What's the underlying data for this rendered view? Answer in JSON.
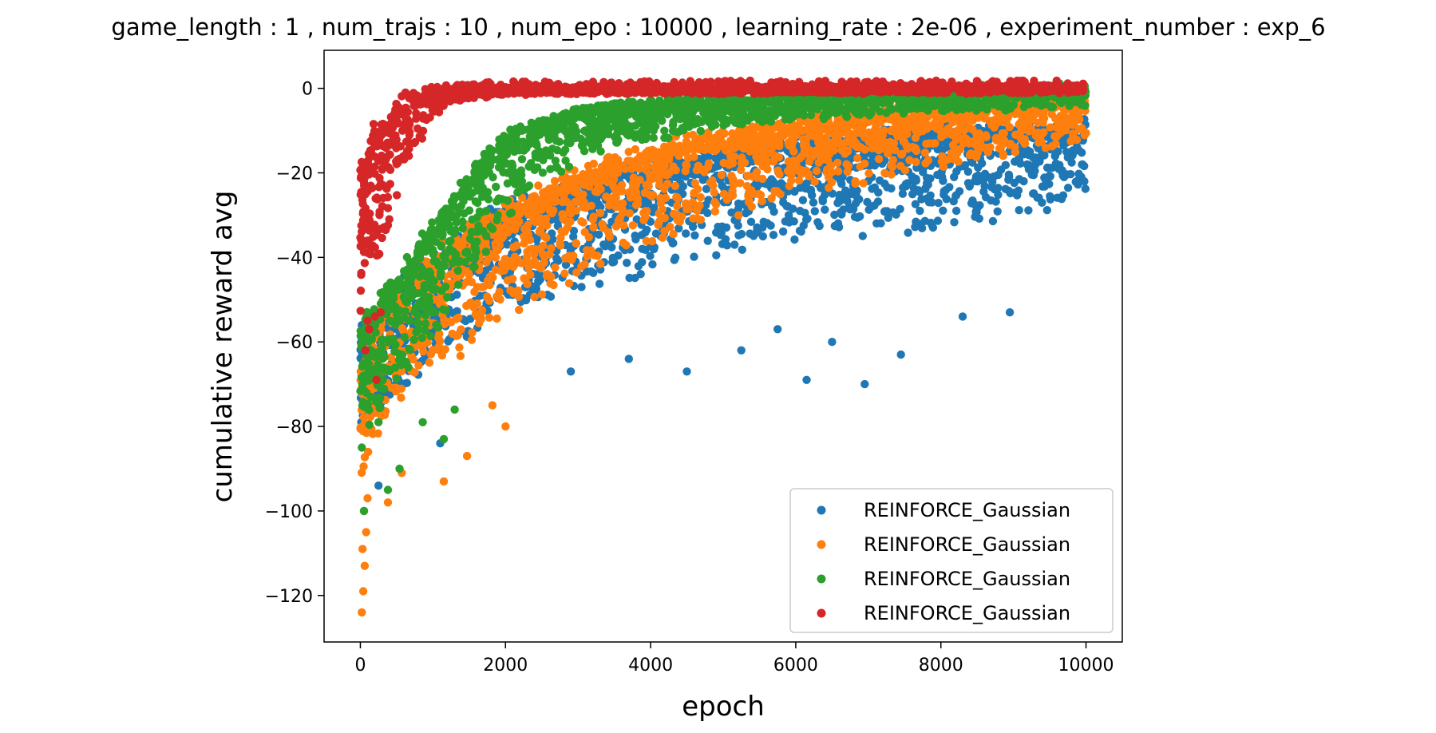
{
  "chart_data": {
    "type": "scatter",
    "title": "game_length : 1 , num_trajs : 10 , num_epo : 10000 , learning_rate : 2e-06 , experiment_number : exp_6",
    "xlabel": "epoch",
    "ylabel": "cumulative reward avg",
    "xlim": [
      -500,
      10500
    ],
    "ylim": [
      -131,
      9
    ],
    "xticks": [
      0,
      2000,
      4000,
      6000,
      8000,
      10000
    ],
    "xtick_labels": [
      "0",
      "2000",
      "4000",
      "6000",
      "8000",
      "10000"
    ],
    "yticks": [
      0,
      -20,
      -40,
      -60,
      -80,
      -100,
      -120
    ],
    "ytick_labels": [
      "0",
      "−20",
      "−40",
      "−60",
      "−80",
      "−100",
      "−120"
    ],
    "legend_position": "lower-right",
    "grid": false,
    "series": [
      {
        "name": "REINFORCE_Gaussian",
        "color": "#1f77b4",
        "trend": [
          [
            0,
            -60
          ],
          [
            500,
            -50
          ],
          [
            1000,
            -42
          ],
          [
            2000,
            -30
          ],
          [
            3000,
            -25
          ],
          [
            4000,
            -20
          ],
          [
            5000,
            -17
          ],
          [
            6000,
            -14
          ],
          [
            7000,
            -13
          ],
          [
            8000,
            -12
          ],
          [
            9000,
            -11
          ],
          [
            10000,
            -10
          ]
        ],
        "spread": [
          [
            0,
            22
          ],
          [
            2000,
            22
          ],
          [
            5000,
            22
          ],
          [
            8000,
            20
          ],
          [
            10000,
            18
          ]
        ],
        "outliers": [
          [
            1100,
            -84
          ],
          [
            250,
            -94
          ],
          [
            2900,
            -67
          ],
          [
            4500,
            -67
          ],
          [
            5250,
            -62
          ],
          [
            6150,
            -69
          ],
          [
            6950,
            -70
          ],
          [
            7450,
            -63
          ],
          [
            8300,
            -54
          ],
          [
            8950,
            -53
          ],
          [
            3700,
            -64
          ],
          [
            5750,
            -57
          ],
          [
            6500,
            -60
          ]
        ]
      },
      {
        "name": "REINFORCE_Gaussian",
        "color": "#ff7f0e",
        "trend": [
          [
            0,
            -70
          ],
          [
            200,
            -58
          ],
          [
            500,
            -50
          ],
          [
            1000,
            -42
          ],
          [
            2000,
            -30
          ],
          [
            3000,
            -22
          ],
          [
            4000,
            -16
          ],
          [
            5000,
            -12
          ],
          [
            6000,
            -9
          ],
          [
            7000,
            -7
          ],
          [
            8000,
            -5
          ],
          [
            9000,
            -4
          ],
          [
            10000,
            -3
          ]
        ],
        "spread": [
          [
            0,
            24
          ],
          [
            1000,
            24
          ],
          [
            3000,
            22
          ],
          [
            6000,
            16
          ],
          [
            10000,
            10
          ]
        ],
        "outliers": [
          [
            20,
            -124
          ],
          [
            40,
            -119
          ],
          [
            60,
            -113
          ],
          [
            30,
            -109
          ],
          [
            80,
            -105
          ],
          [
            50,
            -100
          ],
          [
            100,
            -97
          ],
          [
            380,
            -98
          ],
          [
            1150,
            -93
          ],
          [
            1470,
            -87
          ],
          [
            570,
            -91
          ],
          [
            2000,
            -80
          ],
          [
            1820,
            -75
          ]
        ]
      },
      {
        "name": "REINFORCE_Gaussian",
        "color": "#2ca02c",
        "trend": [
          [
            0,
            -58
          ],
          [
            300,
            -52
          ],
          [
            600,
            -45
          ],
          [
            1000,
            -34
          ],
          [
            1500,
            -22
          ],
          [
            2000,
            -13
          ],
          [
            2500,
            -9
          ],
          [
            3000,
            -6
          ],
          [
            4000,
            -4
          ],
          [
            5000,
            -3
          ],
          [
            6000,
            -2
          ],
          [
            8000,
            -1
          ],
          [
            10000,
            0
          ]
        ],
        "spread": [
          [
            0,
            22
          ],
          [
            1000,
            24
          ],
          [
            2000,
            18
          ],
          [
            3000,
            10
          ],
          [
            5000,
            6
          ],
          [
            10000,
            4
          ]
        ],
        "outliers": [
          [
            20,
            -85
          ],
          [
            380,
            -95
          ],
          [
            540,
            -90
          ],
          [
            1150,
            -83
          ],
          [
            250,
            -79
          ],
          [
            1300,
            -76
          ],
          [
            860,
            -79
          ],
          [
            50,
            -100
          ]
        ]
      },
      {
        "name": "REINFORCE_Gaussian",
        "color": "#d62728",
        "trend": [
          [
            0,
            -20
          ],
          [
            150,
            -15
          ],
          [
            300,
            -10
          ],
          [
            600,
            -4
          ],
          [
            1000,
            -1
          ],
          [
            1500,
            0
          ],
          [
            3000,
            0.3
          ],
          [
            10000,
            0.5
          ]
        ],
        "spread": [
          [
            0,
            30
          ],
          [
            300,
            28
          ],
          [
            700,
            12
          ],
          [
            1200,
            3
          ],
          [
            2000,
            1.6
          ],
          [
            10000,
            1.6
          ]
        ],
        "outliers": [
          [
            100,
            -55
          ],
          [
            200,
            -54
          ],
          [
            220,
            -69
          ],
          [
            280,
            -53
          ],
          [
            120,
            -57
          ],
          [
            70,
            -62
          ]
        ]
      }
    ]
  }
}
